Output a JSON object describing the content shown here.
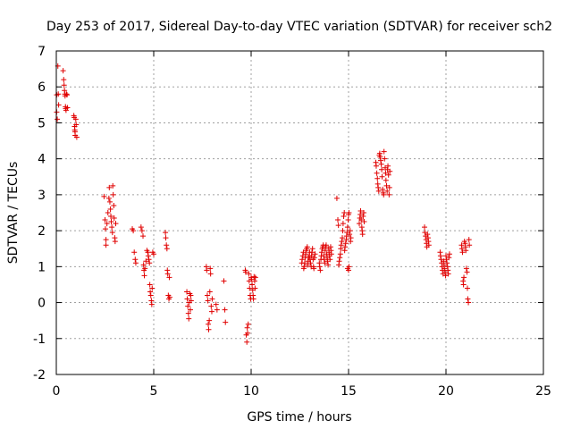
{
  "chart_data": {
    "type": "scatter",
    "title": "Day 253 of 2017, Sidereal Day-to-day VTEC variation (SDTVAR) for receiver sch2",
    "xlabel": "GPS time / hours",
    "ylabel": "SDTVAR / TECUs",
    "xlim": [
      0,
      25
    ],
    "ylim": [
      -2,
      7
    ],
    "xticks": [
      0,
      5,
      10,
      15,
      20,
      25
    ],
    "yticks": [
      -2,
      -1,
      0,
      1,
      2,
      3,
      4,
      5,
      6,
      7
    ],
    "grid": true,
    "marker": "plus",
    "series": [
      {
        "name": "sch2",
        "color": "#e00000",
        "points": [
          [
            0.02,
            5.78
          ],
          [
            0.02,
            5.3
          ],
          [
            0.05,
            5.1
          ],
          [
            0.08,
            6.58
          ],
          [
            0.1,
            5.8
          ],
          [
            0.12,
            5.5
          ],
          [
            0.35,
            6.45
          ],
          [
            0.38,
            6.2
          ],
          [
            0.4,
            6.05
          ],
          [
            0.42,
            5.9
          ],
          [
            0.44,
            5.8
          ],
          [
            0.45,
            5.75
          ],
          [
            0.47,
            5.45
          ],
          [
            0.48,
            5.4
          ],
          [
            0.5,
            5.35
          ],
          [
            0.52,
            5.8
          ],
          [
            0.55,
            5.78
          ],
          [
            0.57,
            5.42
          ],
          [
            0.9,
            5.2
          ],
          [
            0.92,
            5.15
          ],
          [
            0.94,
            4.9
          ],
          [
            0.95,
            4.8
          ],
          [
            0.96,
            4.75
          ],
          [
            0.97,
            4.65
          ],
          [
            1.0,
            5.1
          ],
          [
            1.02,
            4.95
          ],
          [
            1.05,
            4.6
          ],
          [
            2.45,
            2.95
          ],
          [
            2.5,
            2.3
          ],
          [
            2.52,
            2.05
          ],
          [
            2.55,
            1.75
          ],
          [
            2.55,
            1.6
          ],
          [
            2.6,
            2.2
          ],
          [
            2.65,
            2.5
          ],
          [
            2.7,
            2.9
          ],
          [
            2.72,
            3.2
          ],
          [
            2.75,
            2.8
          ],
          [
            2.78,
            2.6
          ],
          [
            2.8,
            2.4
          ],
          [
            2.82,
            2.25
          ],
          [
            2.85,
            2.1
          ],
          [
            2.88,
            1.95
          ],
          [
            2.9,
            3.25
          ],
          [
            2.92,
            3.0
          ],
          [
            2.95,
            2.7
          ],
          [
            2.97,
            2.35
          ],
          [
            3.0,
            1.8
          ],
          [
            3.02,
            1.7
          ],
          [
            3.05,
            2.2
          ],
          [
            3.9,
            2.05
          ],
          [
            3.95,
            2.0
          ],
          [
            4.0,
            1.4
          ],
          [
            4.05,
            1.2
          ],
          [
            4.08,
            1.1
          ],
          [
            4.35,
            2.1
          ],
          [
            4.4,
            2.0
          ],
          [
            4.45,
            1.85
          ],
          [
            4.48,
            1.05
          ],
          [
            4.5,
            0.9
          ],
          [
            4.52,
            0.75
          ],
          [
            4.55,
            0.95
          ],
          [
            4.6,
            1.15
          ],
          [
            4.65,
            1.45
          ],
          [
            4.7,
            1.4
          ],
          [
            4.72,
            1.3
          ],
          [
            4.75,
            1.2
          ],
          [
            4.78,
            1.1
          ],
          [
            4.8,
            0.5
          ],
          [
            4.82,
            0.3
          ],
          [
            4.85,
            0.2
          ],
          [
            4.88,
            0.05
          ],
          [
            4.9,
            -0.05
          ],
          [
            4.92,
            0.4
          ],
          [
            4.95,
            1.4
          ],
          [
            5.0,
            1.35
          ],
          [
            5.6,
            1.95
          ],
          [
            5.62,
            1.8
          ],
          [
            5.65,
            1.6
          ],
          [
            5.68,
            1.5
          ],
          [
            5.7,
            0.9
          ],
          [
            5.72,
            0.8
          ],
          [
            5.75,
            0.2
          ],
          [
            5.78,
            0.1
          ],
          [
            5.8,
            0.7
          ],
          [
            5.82,
            0.15
          ],
          [
            6.7,
            0.3
          ],
          [
            6.72,
            0.1
          ],
          [
            6.75,
            -0.1
          ],
          [
            6.78,
            -0.3
          ],
          [
            6.8,
            -0.45
          ],
          [
            6.82,
            0.0
          ],
          [
            6.85,
            0.25
          ],
          [
            6.88,
            -0.2
          ],
          [
            6.9,
            0.2
          ],
          [
            6.92,
            0.05
          ],
          [
            7.7,
            1.0
          ],
          [
            7.72,
            0.9
          ],
          [
            7.75,
            0.2
          ],
          [
            7.78,
            0.05
          ],
          [
            7.8,
            -0.6
          ],
          [
            7.82,
            -0.75
          ],
          [
            7.85,
            -0.5
          ],
          [
            7.88,
            0.3
          ],
          [
            7.9,
            0.95
          ],
          [
            7.92,
            0.8
          ],
          [
            7.95,
            -0.1
          ],
          [
            7.98,
            -0.25
          ],
          [
            8.0,
            0.1
          ],
          [
            8.2,
            -0.05
          ],
          [
            8.25,
            -0.2
          ],
          [
            8.6,
            0.6
          ],
          [
            8.65,
            -0.2
          ],
          [
            8.68,
            -0.55
          ],
          [
            9.7,
            0.9
          ],
          [
            9.72,
            0.85
          ],
          [
            9.75,
            -0.9
          ],
          [
            9.78,
            -1.1
          ],
          [
            9.8,
            -0.7
          ],
          [
            9.82,
            -0.85
          ],
          [
            9.85,
            -0.6
          ],
          [
            9.88,
            0.8
          ],
          [
            9.9,
            0.6
          ],
          [
            9.92,
            0.4
          ],
          [
            9.95,
            0.2
          ],
          [
            9.98,
            0.1
          ],
          [
            10.0,
            0.7
          ],
          [
            10.02,
            0.65
          ],
          [
            10.05,
            0.5
          ],
          [
            10.08,
            0.35
          ],
          [
            10.1,
            0.2
          ],
          [
            10.12,
            0.1
          ],
          [
            10.15,
            0.72
          ],
          [
            10.18,
            0.6
          ],
          [
            10.2,
            0.4
          ],
          [
            10.22,
            0.7
          ],
          [
            12.6,
            1.1
          ],
          [
            12.62,
            1.2
          ],
          [
            12.65,
            1.3
          ],
          [
            12.68,
            1.4
          ],
          [
            12.7,
            0.95
          ],
          [
            12.72,
            1.0
          ],
          [
            12.75,
            1.1
          ],
          [
            12.78,
            1.25
          ],
          [
            12.8,
            1.35
          ],
          [
            12.82,
            1.45
          ],
          [
            12.85,
            1.5
          ],
          [
            12.88,
            1.55
          ],
          [
            12.9,
            1.05
          ],
          [
            12.92,
            1.15
          ],
          [
            12.95,
            1.25
          ],
          [
            12.98,
            1.3
          ],
          [
            13.0,
            1.4
          ],
          [
            13.02,
            1.2
          ],
          [
            13.05,
            1.1
          ],
          [
            13.08,
            1.0
          ],
          [
            13.1,
            1.3
          ],
          [
            13.12,
            1.4
          ],
          [
            13.15,
            1.5
          ],
          [
            13.18,
            1.2
          ],
          [
            13.2,
            1.0
          ],
          [
            13.22,
            0.95
          ],
          [
            13.25,
            1.25
          ],
          [
            13.28,
            1.35
          ],
          [
            13.5,
            1.1
          ],
          [
            13.52,
            1.0
          ],
          [
            13.55,
            0.9
          ],
          [
            13.58,
            1.2
          ],
          [
            13.6,
            1.3
          ],
          [
            13.62,
            1.4
          ],
          [
            13.65,
            1.5
          ],
          [
            13.68,
            1.55
          ],
          [
            13.7,
            1.6
          ],
          [
            13.72,
            1.3
          ],
          [
            13.75,
            1.2
          ],
          [
            13.78,
            1.1
          ],
          [
            13.8,
            1.45
          ],
          [
            13.82,
            1.55
          ],
          [
            13.85,
            1.6
          ],
          [
            13.88,
            1.35
          ],
          [
            13.9,
            1.25
          ],
          [
            13.92,
            1.15
          ],
          [
            13.95,
            1.05
          ],
          [
            13.98,
            1.5
          ],
          [
            14.0,
            1.4
          ],
          [
            14.02,
            1.3
          ],
          [
            14.05,
            1.2
          ],
          [
            14.08,
            1.55
          ],
          [
            14.1,
            1.45
          ],
          [
            14.12,
            1.35
          ],
          [
            14.4,
            2.9
          ],
          [
            14.45,
            2.3
          ],
          [
            14.48,
            2.15
          ],
          [
            14.5,
            1.05
          ],
          [
            14.52,
            1.15
          ],
          [
            14.55,
            1.25
          ],
          [
            14.58,
            1.35
          ],
          [
            14.6,
            1.5
          ],
          [
            14.62,
            1.6
          ],
          [
            14.65,
            1.7
          ],
          [
            14.68,
            1.8
          ],
          [
            14.7,
            2.0
          ],
          [
            14.72,
            2.2
          ],
          [
            14.75,
            2.4
          ],
          [
            14.78,
            2.5
          ],
          [
            14.8,
            1.45
          ],
          [
            14.82,
            1.55
          ],
          [
            14.85,
            1.65
          ],
          [
            14.88,
            1.75
          ],
          [
            14.9,
            1.85
          ],
          [
            14.92,
            1.95
          ],
          [
            14.95,
            2.1
          ],
          [
            14.98,
            2.3
          ],
          [
            15.0,
            2.45
          ],
          [
            15.02,
            2.5
          ],
          [
            15.05,
            1.9
          ],
          [
            15.08,
            2.0
          ],
          [
            15.1,
            1.7
          ],
          [
            15.12,
            1.8
          ],
          [
            14.95,
            0.95
          ],
          [
            15.0,
            0.9
          ],
          [
            15.02,
            1.0
          ],
          [
            15.55,
            2.2
          ],
          [
            15.58,
            2.35
          ],
          [
            15.6,
            2.45
          ],
          [
            15.62,
            2.55
          ],
          [
            15.65,
            2.3
          ],
          [
            15.68,
            2.1
          ],
          [
            15.7,
            2.0
          ],
          [
            15.72,
            1.9
          ],
          [
            15.75,
            2.4
          ],
          [
            15.78,
            2.5
          ],
          [
            15.8,
            2.25
          ],
          [
            16.4,
            3.9
          ],
          [
            16.42,
            3.8
          ],
          [
            16.45,
            3.6
          ],
          [
            16.48,
            3.45
          ],
          [
            16.5,
            3.3
          ],
          [
            16.52,
            3.2
          ],
          [
            16.55,
            3.1
          ],
          [
            16.58,
            4.1
          ],
          [
            16.6,
            4.15
          ],
          [
            16.62,
            4.05
          ],
          [
            16.65,
            3.95
          ],
          [
            16.68,
            3.85
          ],
          [
            16.7,
            3.7
          ],
          [
            16.72,
            3.5
          ],
          [
            16.75,
            3.15
          ],
          [
            16.78,
            3.05
          ],
          [
            16.8,
            3.0
          ],
          [
            16.82,
            4.2
          ],
          [
            16.85,
            4.0
          ],
          [
            16.88,
            3.75
          ],
          [
            16.9,
            3.6
          ],
          [
            16.92,
            3.4
          ],
          [
            16.95,
            3.25
          ],
          [
            16.98,
            3.1
          ],
          [
            17.0,
            3.7
          ],
          [
            17.02,
            3.8
          ],
          [
            17.05,
            3.55
          ],
          [
            17.08,
            3.0
          ],
          [
            17.1,
            3.2
          ],
          [
            17.12,
            3.65
          ],
          [
            18.9,
            2.1
          ],
          [
            18.92,
            1.95
          ],
          [
            18.95,
            1.85
          ],
          [
            18.98,
            1.75
          ],
          [
            19.0,
            1.65
          ],
          [
            19.02,
            1.55
          ],
          [
            19.05,
            1.9
          ],
          [
            19.08,
            1.8
          ],
          [
            19.1,
            1.7
          ],
          [
            19.12,
            1.6
          ],
          [
            19.7,
            1.4
          ],
          [
            19.72,
            1.3
          ],
          [
            19.75,
            1.2
          ],
          [
            19.78,
            1.1
          ],
          [
            19.8,
            1.0
          ],
          [
            19.82,
            0.9
          ],
          [
            19.85,
            0.8
          ],
          [
            19.88,
            1.15
          ],
          [
            19.9,
            1.05
          ],
          [
            19.92,
            0.95
          ],
          [
            19.95,
            0.85
          ],
          [
            19.98,
            0.75
          ],
          [
            20.0,
            1.3
          ],
          [
            20.02,
            1.2
          ],
          [
            20.05,
            1.1
          ],
          [
            20.08,
            1.0
          ],
          [
            20.1,
            0.9
          ],
          [
            20.12,
            0.8
          ],
          [
            20.15,
            1.25
          ],
          [
            20.18,
            1.35
          ],
          [
            20.8,
            1.6
          ],
          [
            20.82,
            1.5
          ],
          [
            20.85,
            1.4
          ],
          [
            20.88,
            0.6
          ],
          [
            20.9,
            0.5
          ],
          [
            20.92,
            0.7
          ],
          [
            20.95,
            1.7
          ],
          [
            20.98,
            1.65
          ],
          [
            21.0,
            1.55
          ],
          [
            21.02,
            1.45
          ],
          [
            21.05,
            0.95
          ],
          [
            21.08,
            0.85
          ],
          [
            21.1,
            0.4
          ],
          [
            21.12,
            0.1
          ],
          [
            21.15,
            0.0
          ],
          [
            21.18,
            1.75
          ],
          [
            21.2,
            1.6
          ]
        ]
      }
    ]
  }
}
